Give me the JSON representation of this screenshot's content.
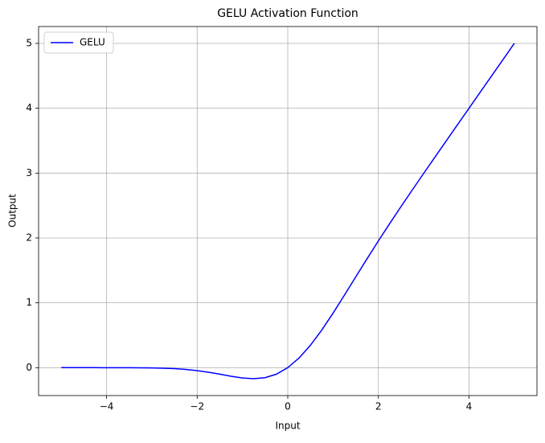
{
  "chart_data": {
    "type": "line",
    "title": "GELU Activation Function",
    "xlabel": "Input",
    "ylabel": "Output",
    "x": [
      -5,
      -4.75,
      -4.5,
      -4.25,
      -4,
      -3.75,
      -3.5,
      -3.25,
      -3,
      -2.75,
      -2.5,
      -2.25,
      -2,
      -1.75,
      -1.5,
      -1.25,
      -1,
      -0.75,
      -0.5,
      -0.25,
      0,
      0.25,
      0.5,
      0.75,
      1,
      1.25,
      1.5,
      1.75,
      2,
      2.25,
      2.5,
      2.75,
      3,
      3.25,
      3.5,
      3.75,
      4,
      4.25,
      4.5,
      4.75,
      5
    ],
    "series": [
      {
        "name": "GELU",
        "color": "#0000ff",
        "values": [
          0,
          0,
          0,
          0,
          -0.0001,
          -0.0003,
          -0.0008,
          -0.0019,
          -0.004,
          -0.0082,
          -0.0155,
          -0.0275,
          -0.0455,
          -0.0701,
          -0.1002,
          -0.1321,
          -0.1587,
          -0.17,
          -0.1543,
          -0.1003,
          0,
          0.1497,
          0.3457,
          0.58,
          0.8413,
          1.1179,
          1.3998,
          1.6799,
          1.9545,
          2.2225,
          2.4845,
          2.7418,
          2.996,
          3.2481,
          3.4992,
          3.7497,
          3.9999,
          4.25,
          4.5,
          4.75,
          5
        ]
      }
    ],
    "xlim": [
      -5.5,
      5.5
    ],
    "ylim": [
      -0.43,
      5.26
    ],
    "xticks": [
      {
        "value": -4,
        "label": "−4"
      },
      {
        "value": -2,
        "label": "−2"
      },
      0,
      2,
      4
    ],
    "yticks": [
      0,
      1,
      2,
      3,
      4,
      5
    ],
    "grid": true,
    "legend": "upper-left"
  }
}
